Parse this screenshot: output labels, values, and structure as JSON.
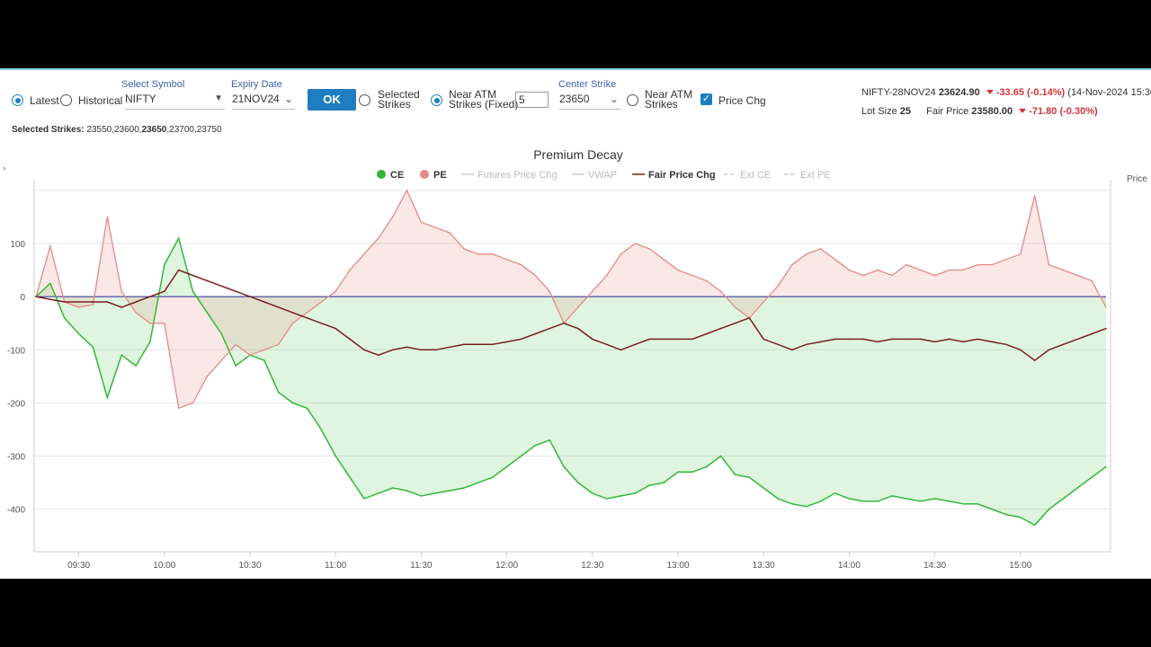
{
  "controls": {
    "latest_label": "Latest",
    "historical_label": "Historical",
    "select_symbol_label": "Select Symbol",
    "symbol_value": "NIFTY",
    "expiry_label": "Expiry Date",
    "expiry_value": "21NOV24",
    "ok_label": "OK",
    "selected_strikes_label_1": "Selected",
    "selected_strikes_label_2": "Strikes",
    "near_atm_fixed_label_1": "Near ATM",
    "near_atm_fixed_label_2": "Strikes (Fixed)",
    "near_atm_count": "5",
    "center_strike_label": "Center Strike",
    "center_strike_value": "23650",
    "near_atm_label_1": "Near ATM",
    "near_atm_label_2": "Strikes",
    "price_chg_label": "Price Chg",
    "selected_strikes_title": "Selected Strikes:",
    "strikes_before": "23550,23600,",
    "strikes_center": "23650",
    "strikes_after": ",23700,23750"
  },
  "info": {
    "future_name": "NIFTY-28NOV24",
    "future_price": "23624.90",
    "future_change": "-33.65",
    "future_change_pct": "(-0.14%)",
    "timestamp": "(14-Nov-2024 15:30)",
    "lot_size_label": "Lot Size",
    "lot_size": "25",
    "fair_price_label": "Fair Price",
    "fair_price": "23580.00",
    "fair_change": "-71.80",
    "fair_change_pct": "(-0.30%)"
  },
  "colors": {
    "ce": "#33b83a",
    "pe": "#e58a87",
    "fair": "#7a1f1f",
    "zero_line": "#4b4ba0",
    "accent": "#1f7ec1"
  },
  "chart_data": {
    "type": "line",
    "title": "Premium Decay",
    "right_axis_label": "Price",
    "legend": [
      {
        "name": "CE",
        "marker": "dot",
        "active": true
      },
      {
        "name": "PE",
        "marker": "dot",
        "active": true
      },
      {
        "name": "Futures Price Chg",
        "marker": "line",
        "active": false
      },
      {
        "name": "VWAP",
        "marker": "line",
        "active": false
      },
      {
        "name": "Fair Price Chg",
        "marker": "line",
        "active": true
      },
      {
        "name": "Ext CE",
        "marker": "dash",
        "active": false
      },
      {
        "name": "Ext PE",
        "marker": "dash",
        "active": false
      }
    ],
    "legend_position": "top-center",
    "x_ticks": [
      "09:30",
      "10:00",
      "10:30",
      "11:00",
      "11:30",
      "12:00",
      "12:30",
      "13:00",
      "13:30",
      "14:00",
      "14:30",
      "15:00"
    ],
    "x_range": [
      "09:15",
      "15:30"
    ],
    "y_ticks": [
      "100",
      "0",
      "-100",
      "-200",
      "-300",
      "-400"
    ],
    "ylim": [
      -480,
      220
    ],
    "grid": true,
    "x": [
      "09:15",
      "09:20",
      "09:25",
      "09:30",
      "09:35",
      "09:40",
      "09:45",
      "09:50",
      "09:55",
      "10:00",
      "10:05",
      "10:10",
      "10:15",
      "10:20",
      "10:25",
      "10:30",
      "10:35",
      "10:40",
      "10:45",
      "10:50",
      "10:55",
      "11:00",
      "11:05",
      "11:10",
      "11:15",
      "11:20",
      "11:25",
      "11:30",
      "11:35",
      "11:40",
      "11:45",
      "11:50",
      "11:55",
      "12:00",
      "12:05",
      "12:10",
      "12:15",
      "12:20",
      "12:25",
      "12:30",
      "12:35",
      "12:40",
      "12:45",
      "12:50",
      "12:55",
      "13:00",
      "13:05",
      "13:10",
      "13:15",
      "13:20",
      "13:25",
      "13:30",
      "13:35",
      "13:40",
      "13:45",
      "13:50",
      "13:55",
      "14:00",
      "14:05",
      "14:10",
      "14:15",
      "14:20",
      "14:25",
      "14:30",
      "14:35",
      "14:40",
      "14:45",
      "14:50",
      "14:55",
      "15:00",
      "15:05",
      "15:10",
      "15:15",
      "15:20",
      "15:25",
      "15:30"
    ],
    "series": [
      {
        "name": "CE",
        "values": [
          0,
          25,
          -40,
          -70,
          -95,
          -190,
          -110,
          -130,
          -85,
          60,
          110,
          10,
          -30,
          -70,
          -130,
          -110,
          -120,
          -180,
          -200,
          -210,
          -250,
          -300,
          -340,
          -380,
          -370,
          -360,
          -365,
          -375,
          -370,
          -365,
          -360,
          -350,
          -340,
          -320,
          -300,
          -280,
          -270,
          -320,
          -350,
          -370,
          -380,
          -375,
          -370,
          -355,
          -350,
          -330,
          -330,
          -320,
          -300,
          -335,
          -340,
          -360,
          -380,
          -390,
          -395,
          -385,
          -370,
          -380,
          -385,
          -385,
          -375,
          -380,
          -385,
          -380,
          -385,
          -390,
          -390,
          -400,
          -410,
          -415,
          -430,
          -400,
          -380,
          -360,
          -340,
          -320
        ]
      },
      {
        "name": "PE",
        "values": [
          0,
          95,
          -10,
          -20,
          -15,
          150,
          10,
          -30,
          -50,
          -50,
          -210,
          -200,
          -150,
          -120,
          -90,
          -110,
          -100,
          -90,
          -50,
          -30,
          -10,
          10,
          50,
          80,
          110,
          150,
          200,
          140,
          130,
          120,
          90,
          80,
          80,
          70,
          60,
          40,
          10,
          -50,
          -20,
          10,
          40,
          80,
          100,
          90,
          70,
          50,
          40,
          30,
          10,
          -20,
          -40,
          -10,
          20,
          60,
          80,
          90,
          70,
          50,
          40,
          50,
          40,
          60,
          50,
          40,
          50,
          50,
          60,
          60,
          70,
          80,
          190,
          60,
          50,
          40,
          30,
          -20
        ]
      },
      {
        "name": "Fair Price Chg",
        "values": [
          0,
          -5,
          -10,
          -10,
          -10,
          -10,
          -20,
          -10,
          0,
          10,
          50,
          40,
          30,
          20,
          10,
          0,
          -10,
          -20,
          -30,
          -40,
          -50,
          -60,
          -80,
          -100,
          -110,
          -100,
          -95,
          -100,
          -100,
          -95,
          -90,
          -90,
          -90,
          -85,
          -80,
          -70,
          -60,
          -50,
          -60,
          -80,
          -90,
          -100,
          -90,
          -80,
          -80,
          -80,
          -80,
          -70,
          -60,
          -50,
          -40,
          -80,
          -90,
          -100,
          -90,
          -85,
          -80,
          -80,
          -80,
          -85,
          -80,
          -80,
          -80,
          -85,
          -80,
          -85,
          -80,
          -85,
          -90,
          -100,
          -120,
          -100,
          -90,
          -80,
          -70,
          -60
        ]
      }
    ]
  }
}
